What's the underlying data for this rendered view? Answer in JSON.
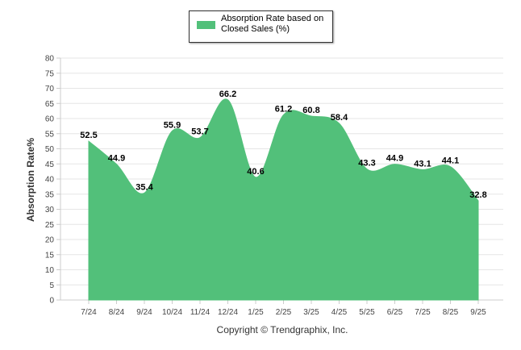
{
  "legend": {
    "label": "Absorption Rate based on Closed Sales (%)"
  },
  "footer": {
    "copyright": "Copyright © Trendgraphix, Inc."
  },
  "colors": {
    "area": "#52c07a",
    "grid": "#e6e6e6",
    "axis": "#cccccc"
  },
  "chart_data": {
    "type": "area",
    "categories": [
      "7/24",
      "8/24",
      "9/24",
      "10/24",
      "11/24",
      "12/24",
      "1/25",
      "2/25",
      "3/25",
      "4/25",
      "5/25",
      "6/25",
      "7/25",
      "8/25",
      "9/25"
    ],
    "series": [
      {
        "name": "Absorption Rate based on Closed Sales (%)",
        "values": [
          52.5,
          44.9,
          35.4,
          55.9,
          53.7,
          66.2,
          40.6,
          61.2,
          60.8,
          58.4,
          43.3,
          44.9,
          43.1,
          44.1,
          32.8
        ]
      }
    ],
    "ylabel": "Absorption Rate%",
    "ylim": [
      0,
      80
    ],
    "yticks": [
      0,
      5,
      10,
      15,
      20,
      25,
      30,
      35,
      40,
      45,
      50,
      55,
      60,
      65,
      70,
      75,
      80
    ],
    "grid": true,
    "legend_position": "top-center"
  }
}
